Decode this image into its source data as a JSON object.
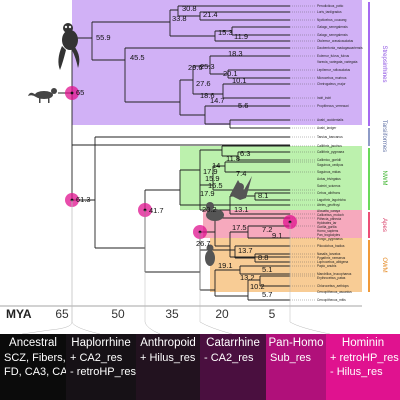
{
  "axis": {
    "label": "MYA",
    "ticks": [
      "65",
      "50",
      "35",
      "20",
      "5"
    ]
  },
  "clades": [
    {
      "name": "Strepsirrhines",
      "color": "#b98cf0"
    },
    {
      "name": "Tarsiiformes",
      "color": "#9aa7c9"
    },
    {
      "name": "NWM",
      "color": "#7be36b"
    },
    {
      "name": "Apes",
      "color": "#f06a8c"
    },
    {
      "name": "OWM",
      "color": "#f3b060"
    }
  ],
  "node_ages": [
    "30.8",
    "21.4",
    "33.8",
    "55.9",
    "15.3",
    "11.9",
    "45.5",
    "18.3",
    "25.3",
    "29.6",
    "20.1",
    "27.6",
    "10.1",
    "18.6",
    "14.7",
    "5.6",
    "65",
    "61.3",
    "6.3",
    "11.8",
    "14",
    "17.9",
    "7.4",
    "15.9",
    "16.5",
    "17.9",
    "8.1",
    "20.2",
    "13.1",
    "41.7",
    "17.5",
    "7.2",
    "9.1",
    "26.7",
    "13.7",
    "8.8",
    "19.1",
    "5.1",
    "13.2",
    "10.2",
    "5.7"
  ],
  "species": [
    "Perodicticus_potto",
    "Loris_tardigradus",
    "Nycticebus_coucang",
    "Galago_senegalensis",
    "Galago_senegalensis",
    "Otolemur_crassicaudatus",
    "Daubentonia_madagascariensis",
    "Eulemur_fulvus_fulvus",
    "Varecia_variegata_variegata",
    "Lepilemur_ruficaudatus",
    "Microcebus_murinus",
    "Cheirogaleus_major",
    "Indri_indri",
    "Propithecus_verreauxi",
    "Avahi_occidentalis",
    "Avahi_laniger",
    "Tarsius_bancanus",
    "Callithrix_jacchus",
    "Callithrix_pygmaea",
    "Callimico_goeldii",
    "Saguinus_oedipus",
    "Saguinus_midas",
    "Aotus_trivirgatus",
    "Saimiri_sciureus",
    "Cebus_albifrons",
    "Lagothrix_lagotricha",
    "Ateles_geoffroyi",
    "Alouatta_caraya",
    "Callicebus_moloch",
    "Pithecia_pithecia",
    "Hylobates_lar",
    "Gorilla_gorilla",
    "Homo_sapiens",
    "Pan_troglodytes",
    "Pongo_pygmaeus",
    "Pilocolobus_badius",
    "Nasalis_larvatus",
    "Pygathrix_nemaeus",
    "Lophocebus_albigena",
    "Papio_anubis",
    "Mandrillus_leucophaeus",
    "Erythrocebus_patas",
    "Chlorocebus_aethiops",
    "Cercopithecus_ascanius",
    "Cercopithecus_mitis"
  ],
  "bar_segments": [
    {
      "title": "Ancestral",
      "lines": [
        "SCZ, Fibers,",
        "FD, CA3, CA1"
      ],
      "color": "#0b0b0b"
    },
    {
      "title": "Haplorrhine",
      "lines": [
        "+ CA2_res",
        "- retroHP_res"
      ],
      "color": "#161116"
    },
    {
      "title": "Anthropoid",
      "lines": [
        "+ Hilus_res"
      ],
      "color": "#22121f"
    },
    {
      "title": "Catarrhine",
      "lines": [
        "- CA2_res"
      ],
      "color": "#4a0f3f"
    },
    {
      "title": "Pan-Homo",
      "lines": [
        "Sub_res"
      ],
      "color": "#b0107a"
    },
    {
      "title": "Hominin",
      "lines": [
        "+ retroHP_res",
        "- Hilus_res"
      ],
      "color": "#e0128f"
    }
  ]
}
